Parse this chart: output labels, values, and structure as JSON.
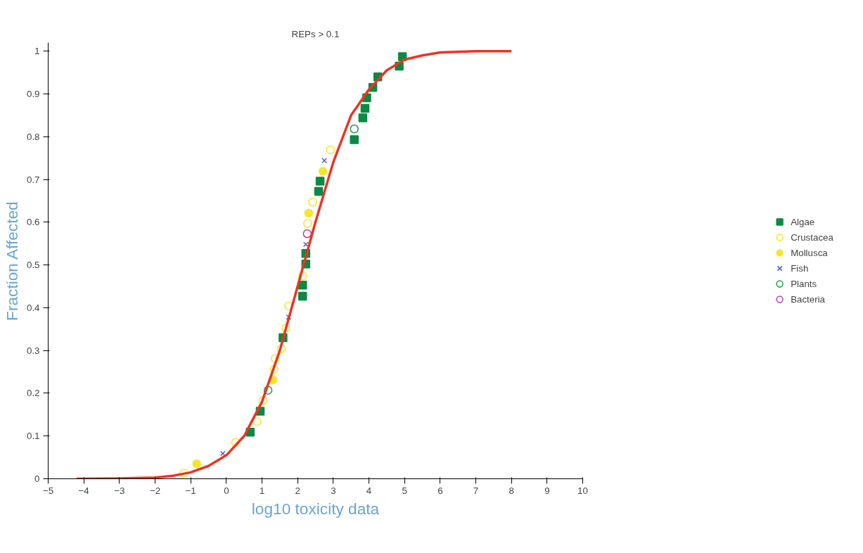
{
  "chart_data": {
    "type": "scatter",
    "title": "REPs > 0.1",
    "xlabel": "log10 toxicity data",
    "ylabel": "Fraction Affected",
    "xlim": [
      -5,
      10
    ],
    "ylim": [
      0,
      1.02
    ],
    "xticks": [
      -5,
      -4,
      -3,
      -2,
      -1,
      0,
      1,
      2,
      3,
      4,
      5,
      6,
      7,
      8,
      9,
      10
    ],
    "yticks": [
      0,
      0.1,
      0.2,
      0.3,
      0.4,
      0.5,
      0.6,
      0.7,
      0.8,
      0.9,
      1
    ],
    "grid": false,
    "legend": "right",
    "series": [
      {
        "name": "Algae",
        "color": "#0a8a43",
        "marker": "square",
        "x": [
          0.67,
          0.95,
          1.59,
          2.14,
          2.14,
          2.23,
          2.23,
          2.59,
          2.63,
          3.59,
          3.83,
          3.89,
          3.94,
          4.11,
          4.25,
          4.85,
          4.94
        ],
        "values": [
          0.109,
          0.158,
          0.33,
          0.427,
          0.453,
          0.502,
          0.527,
          0.672,
          0.696,
          0.793,
          0.844,
          0.866,
          0.891,
          0.915,
          0.94,
          0.965,
          0.987
        ]
      },
      {
        "name": "Crustacea",
        "color": "#f5e62a",
        "marker": "circle_open",
        "x": [
          -1.19,
          0.26,
          0.86,
          1.03,
          1.34,
          1.37,
          1.54,
          1.67,
          1.75,
          2.14,
          2.28,
          2.42,
          2.92
        ],
        "values": [
          0.013,
          0.085,
          0.134,
          0.183,
          0.256,
          0.281,
          0.304,
          0.352,
          0.404,
          0.474,
          0.597,
          0.647,
          0.769
        ]
      },
      {
        "name": "Mollusca",
        "color": "#f5e62a",
        "marker": "circle",
        "x": [
          -0.83,
          1.31,
          2.31,
          2.71
        ],
        "values": [
          0.035,
          0.231,
          0.621,
          0.719
        ]
      },
      {
        "name": "Fish",
        "color": "#5060c0",
        "marker": "cross",
        "x": [
          -0.1,
          1.75,
          2.23,
          2.75
        ],
        "values": [
          0.059,
          0.378,
          0.548,
          0.744
        ]
      },
      {
        "name": "Plants",
        "color": "#1a9a50",
        "marker": "circle_open",
        "x": [
          1.17,
          3.59
        ],
        "values": [
          0.207,
          0.818
        ]
      },
      {
        "name": "Bacteria",
        "color": "#b040b0",
        "marker": "circle_open",
        "x": [
          2.27
        ],
        "values": [
          0.573
        ]
      },
      {
        "type": "line",
        "color": "#ee3322",
        "line_style": "solid",
        "x": [
          -4.2,
          -3,
          -2,
          -1.5,
          -1,
          -0.5,
          0,
          0.5,
          1,
          1.5,
          2,
          2.5,
          3,
          3.5,
          4,
          4.5,
          5,
          5.5,
          6,
          7,
          8
        ],
        "values": [
          0,
          0.001,
          0.003,
          0.007,
          0.015,
          0.03,
          0.055,
          0.1,
          0.18,
          0.3,
          0.45,
          0.6,
          0.74,
          0.85,
          0.91,
          0.955,
          0.98,
          0.99,
          0.997,
          1,
          1
        ]
      }
    ]
  }
}
